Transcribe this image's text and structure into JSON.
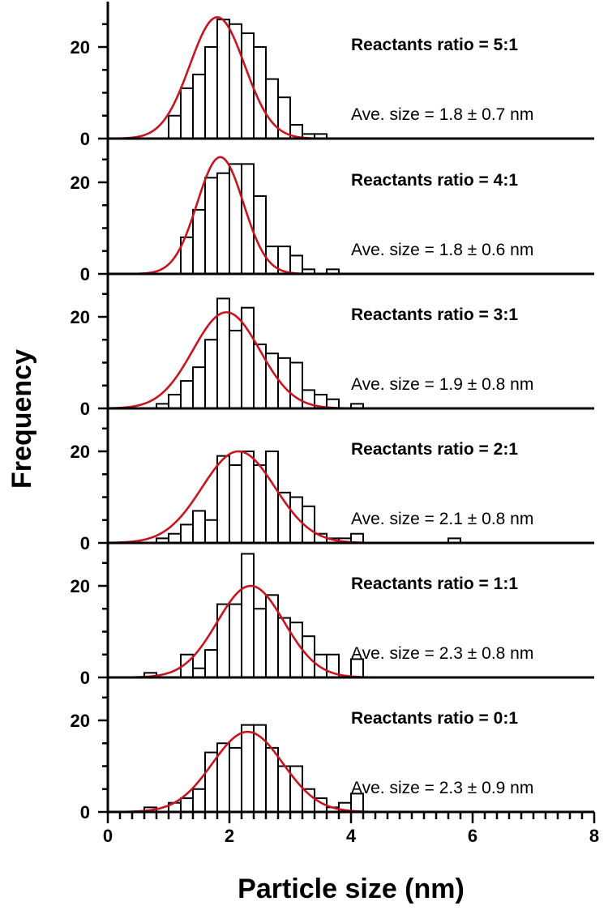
{
  "colors": {
    "fit_curve": "#c8141e",
    "bar_fill": "#ffffff",
    "bar_stroke": "#000000"
  },
  "axes": {
    "xlabel": "Particle size (nm)",
    "ylabel": "Frequency",
    "xticks": [
      "0",
      "2",
      "4",
      "6",
      "8"
    ],
    "yticks": [
      "0",
      "20"
    ]
  },
  "chart_data": [
    {
      "type": "bar",
      "title": "Reactants ratio = 5:1",
      "annotation": "Ave. size = 1.8 ± 0.7 nm",
      "bin_width": 0.2,
      "x": [
        1.0,
        1.2,
        1.4,
        1.6,
        1.8,
        2.0,
        2.2,
        2.4,
        2.6,
        2.8,
        3.0,
        3.2,
        3.4
      ],
      "values": [
        5,
        11,
        14,
        20,
        26,
        25,
        23,
        20,
        13,
        9,
        3,
        1,
        1
      ],
      "fit": {
        "mean": 1.8,
        "sd": 0.45,
        "peak": 26.5
      },
      "xlim": [
        0,
        8
      ],
      "ylim": [
        0,
        30
      ]
    },
    {
      "type": "bar",
      "title": "Reactants ratio = 4:1",
      "annotation": "Ave. size = 1.8 ± 0.6 nm",
      "bin_width": 0.2,
      "x": [
        1.2,
        1.4,
        1.6,
        1.8,
        2.0,
        2.2,
        2.4,
        2.6,
        2.8,
        3.0,
        3.2,
        3.4,
        3.6
      ],
      "values": [
        8,
        14,
        21,
        22,
        24,
        24,
        17,
        6,
        6,
        4,
        1,
        0,
        1
      ],
      "fit": {
        "mean": 1.85,
        "sd": 0.38,
        "peak": 25.5
      },
      "xlim": [
        0,
        8
      ],
      "ylim": [
        0,
        30
      ]
    },
    {
      "type": "bar",
      "title": "Reactants ratio = 3:1",
      "annotation": "Ave. size = 1.9 ± 0.8 nm",
      "bin_width": 0.2,
      "x": [
        0.8,
        1.0,
        1.2,
        1.4,
        1.6,
        1.8,
        2.0,
        2.2,
        2.4,
        2.6,
        2.8,
        3.0,
        3.2,
        3.4,
        3.6,
        3.8,
        4.0
      ],
      "values": [
        1,
        3,
        6,
        9,
        15,
        24,
        17,
        22,
        14,
        12,
        11,
        10,
        4,
        3,
        2,
        0,
        1
      ],
      "fit": {
        "mean": 1.95,
        "sd": 0.55,
        "peak": 21
      },
      "xlim": [
        0,
        8
      ],
      "ylim": [
        0,
        30
      ]
    },
    {
      "type": "bar",
      "title": "Reactants ratio = 2:1",
      "annotation": "Ave. size = 2.1 ± 0.8 nm",
      "bin_width": 0.2,
      "x": [
        0.8,
        1.0,
        1.2,
        1.4,
        1.6,
        1.8,
        2.0,
        2.2,
        2.4,
        2.6,
        2.8,
        3.0,
        3.2,
        3.4,
        3.6,
        3.8,
        4.0,
        5.6
      ],
      "values": [
        1,
        2,
        4,
        7,
        5,
        19,
        17,
        20,
        17,
        20,
        11,
        10,
        8,
        2,
        1,
        1,
        2,
        1
      ],
      "fit": {
        "mean": 2.15,
        "sd": 0.6,
        "peak": 20
      },
      "xlim": [
        0,
        8
      ],
      "ylim": [
        0,
        30
      ]
    },
    {
      "type": "bar",
      "title": "Reactants ratio = 1:1",
      "annotation": "Ave. size = 2.3 ± 0.8 nm",
      "bin_width": 0.2,
      "x": [
        0.6,
        0.8,
        1.0,
        1.2,
        1.4,
        1.6,
        1.8,
        2.0,
        2.2,
        2.4,
        2.6,
        2.8,
        3.0,
        3.2,
        3.4,
        3.6,
        3.8,
        4.0
      ],
      "values": [
        1,
        0,
        0,
        5,
        2,
        6,
        16,
        16,
        27,
        15,
        18,
        13,
        12,
        9,
        5,
        5,
        0,
        4
      ],
      "fit": {
        "mean": 2.35,
        "sd": 0.55,
        "peak": 20
      },
      "xlim": [
        0,
        8
      ],
      "ylim": [
        0,
        30
      ]
    },
    {
      "type": "bar",
      "title": "Reactants ratio = 0:1",
      "annotation": "Ave. size = 2.3 ± 0.9 nm",
      "bin_width": 0.2,
      "x": [
        0.6,
        0.8,
        1.0,
        1.2,
        1.4,
        1.6,
        1.8,
        2.0,
        2.2,
        2.4,
        2.6,
        2.8,
        3.0,
        3.2,
        3.4,
        3.6,
        3.8,
        4.0,
        4.2
      ],
      "values": [
        1,
        0,
        2,
        3,
        5,
        13,
        15,
        14,
        19,
        19,
        14,
        10,
        10,
        5,
        3,
        1,
        2,
        4,
        0
      ],
      "fit": {
        "mean": 2.3,
        "sd": 0.58,
        "peak": 17.5
      },
      "xlim": [
        0,
        8
      ],
      "ylim": [
        0,
        30
      ]
    }
  ]
}
